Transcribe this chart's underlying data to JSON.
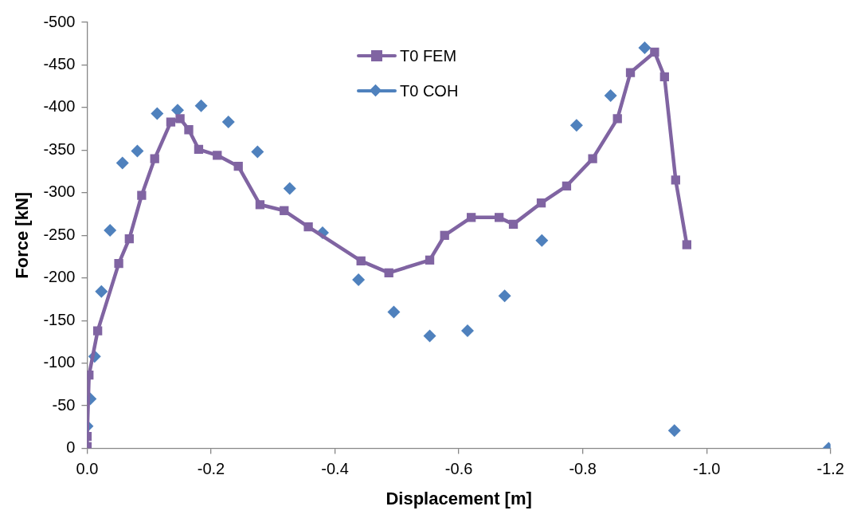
{
  "chart_data": {
    "type": "line",
    "xlabel": "Displacement [m]",
    "ylabel": "Force [kN]",
    "xlim": [
      0,
      -1.2
    ],
    "ylim": [
      0,
      -500
    ],
    "xticks": [
      {
        "value": 0,
        "label": "0.0"
      },
      -0.2,
      -0.4,
      -0.6,
      -0.8,
      {
        "value": -1,
        "label": "-1.0"
      },
      -1.2
    ],
    "yticks": [
      0,
      -50,
      -100,
      -150,
      -200,
      -250,
      -300,
      -350,
      -400,
      -450,
      -500
    ],
    "grid": false,
    "legend": "top",
    "series": [
      {
        "name": "T0 FEM",
        "type": "line",
        "marker": "square",
        "color": "#8064a2",
        "x": [
          0,
          0,
          -0.003,
          -0.017,
          -0.051,
          -0.068,
          -0.088,
          -0.109,
          -0.135,
          -0.15,
          -0.164,
          -0.18,
          -0.21,
          -0.244,
          -0.279,
          -0.318,
          -0.357,
          -0.442,
          -0.487,
          -0.553,
          -0.577,
          -0.62,
          -0.665,
          -0.688,
          -0.733,
          -0.774,
          -0.816,
          -0.856,
          -0.877,
          -0.916,
          -0.932,
          -0.95,
          -0.968
        ],
        "values": [
          -2,
          -14,
          -86,
          -138,
          -217,
          -246,
          -297,
          -340,
          -383,
          -387,
          -374,
          -351,
          -344,
          -331,
          -286,
          -279,
          -260,
          -220,
          -206,
          -221,
          -250,
          -271,
          -271,
          -263,
          -288,
          -308,
          -340,
          -387,
          -441,
          -465,
          -436,
          -315,
          -239
        ]
      },
      {
        "name": "T0 COH",
        "type": "scatter",
        "marker": "diamond",
        "color": "#4f81bd",
        "x": [
          0,
          -0.005,
          -0.012,
          -0.023,
          -0.037,
          -0.057,
          -0.081,
          -0.113,
          -0.146,
          -0.184,
          -0.228,
          -0.275,
          -0.327,
          -0.38,
          -0.438,
          -0.495,
          -0.553,
          -0.614,
          -0.674,
          -0.734,
          -0.79,
          -0.845,
          -0.9,
          -0.948,
          -1.197
        ],
        "values": [
          -26,
          -58,
          -108,
          -184,
          -256,
          -335,
          -349,
          -393,
          -397,
          -402,
          -383,
          -348,
          -305,
          -253,
          -198,
          -160,
          -132,
          -138,
          -179,
          -244,
          -379,
          -414,
          -470,
          -21,
          0
        ]
      }
    ]
  }
}
